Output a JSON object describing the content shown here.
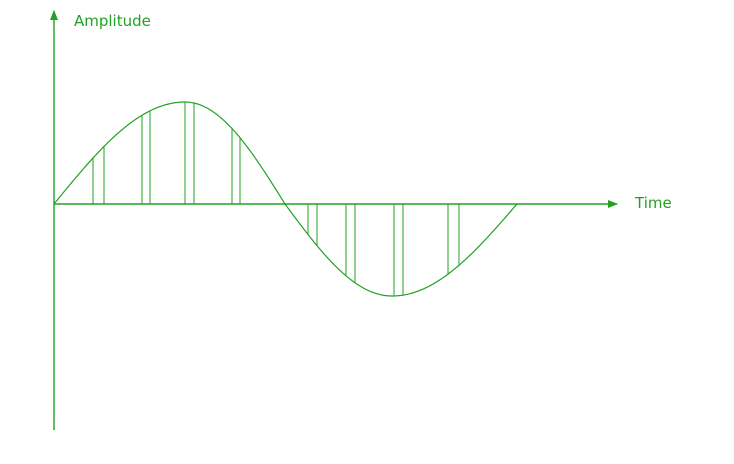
{
  "diagram": {
    "y_axis_label": "Amplitude",
    "x_axis_label": "Time",
    "line_color": "#22a122",
    "label_color": "#22a122",
    "background_color": "#ffffff"
  }
}
